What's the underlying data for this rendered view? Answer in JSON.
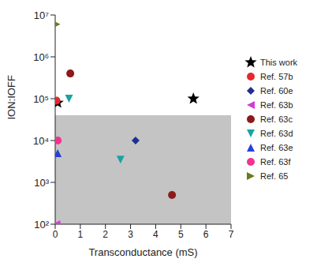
{
  "chart_data": {
    "type": "scatter",
    "x_label": "Transconductance (mS)",
    "y_label": "ION:IOFF",
    "log": "y",
    "grid": false,
    "legend": "right",
    "xlim": [
      0,
      7
    ],
    "xticks": [
      0,
      1,
      2,
      3,
      4,
      5,
      6,
      7
    ],
    "ylim": [
      100,
      10000000
    ],
    "yticks": [
      {
        "value": 100,
        "label": "10²"
      },
      {
        "value": 1000,
        "label": "10³"
      },
      {
        "value": 10000,
        "label": "10⁴"
      },
      {
        "value": 100000,
        "label": "10⁵"
      },
      {
        "value": 1000000,
        "label": "10⁶"
      },
      {
        "value": 10000000,
        "label": "10⁷"
      }
    ],
    "shaded_region_y": [
      100,
      40000
    ],
    "series": [
      {
        "name": "This work",
        "color": "#000000",
        "marker": "star",
        "x": [
          0.1,
          5.5
        ],
        "values": [
          80000,
          100000
        ]
      },
      {
        "name": "Ref. 57b",
        "color": "#e8262b",
        "marker": "circle",
        "x": [
          0.05
        ],
        "values": [
          90000
        ]
      },
      {
        "name": "Ref. 60e",
        "color": "#1f2f8f",
        "marker": "diamond",
        "x": [
          3.2
        ],
        "values": [
          10000
        ]
      },
      {
        "name": "Ref. 63b",
        "color": "#d63ad6",
        "marker": "triangle-left",
        "x": [
          0.05
        ],
        "values": [
          100
        ]
      },
      {
        "name": "Ref. 63c",
        "color": "#8b1a1a",
        "marker": "circle",
        "x": [
          0.6,
          4.65
        ],
        "values": [
          400000,
          500
        ]
      },
      {
        "name": "Ref. 63d",
        "color": "#1aa3a3",
        "marker": "triangle-down",
        "x": [
          0.55,
          2.6
        ],
        "values": [
          100000,
          3500
        ]
      },
      {
        "name": "Ref. 63e",
        "color": "#2a3fd6",
        "marker": "triangle-up",
        "x": [
          0.1
        ],
        "values": [
          5000
        ]
      },
      {
        "name": "Ref. 63f",
        "color": "#f0358f",
        "marker": "circle",
        "x": [
          0.1
        ],
        "values": [
          10000
        ]
      },
      {
        "name": "Ref. 65",
        "color": "#6b7a1a",
        "marker": "triangle-right",
        "x": [
          0.05
        ],
        "values": [
          6000000
        ]
      }
    ]
  }
}
